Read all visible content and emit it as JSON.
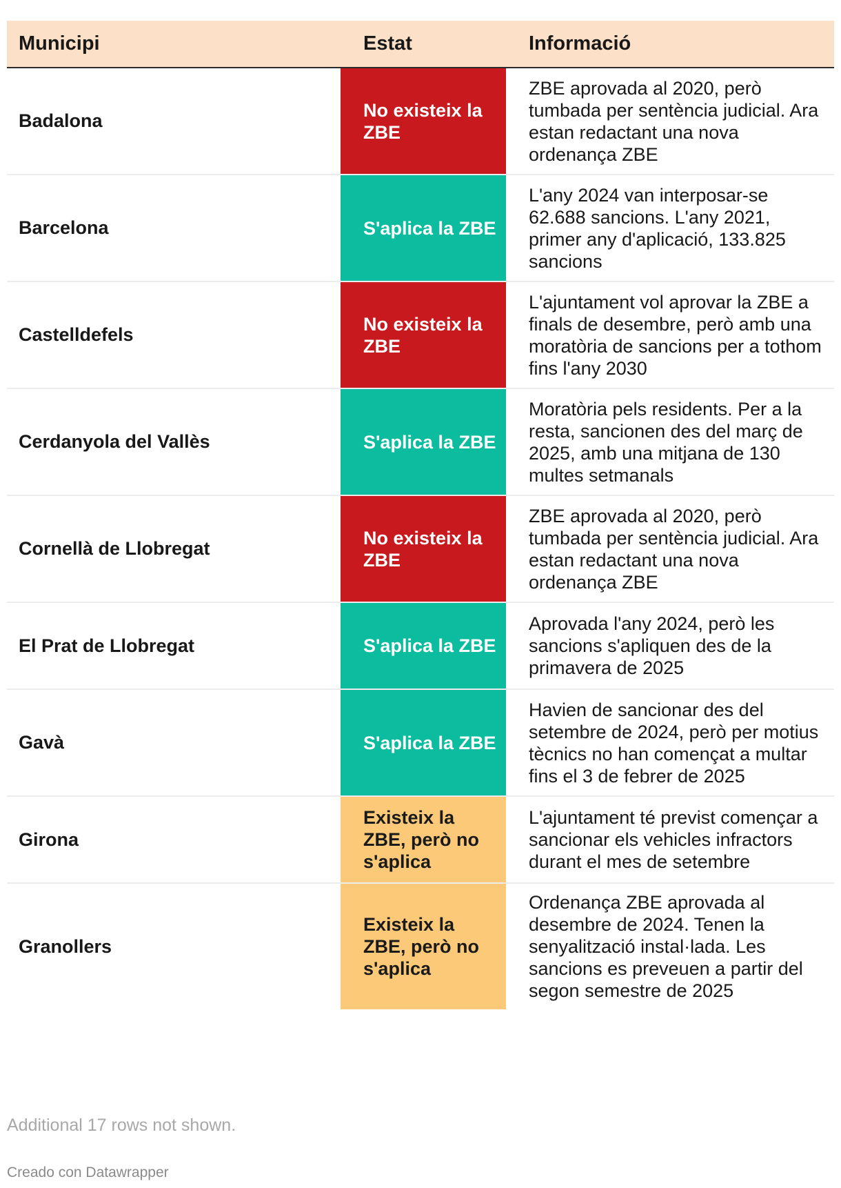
{
  "chart_data": {
    "type": "table",
    "columns": [
      "Municipi",
      "Estat",
      "Informació"
    ],
    "status_colors": {
      "red": "#c8191e",
      "green": "#0bbc9e",
      "yellow": "#fbc977"
    },
    "header_background": "#fde0c8",
    "rows": [
      {
        "municipi": "Badalona",
        "estat": "No existeix la ZBE",
        "status_color": "red",
        "info": "ZBE aprovada al 2020, però tumbada per sentència judicial. Ara estan redactant una nova ordenança ZBE"
      },
      {
        "municipi": "Barcelona",
        "estat": "S'aplica la ZBE",
        "status_color": "green",
        "info": "L'any 2024 van interposar-se 62.688 sancions. L'any 2021, primer any d'aplicació, 133.825 sancions"
      },
      {
        "municipi": "Castelldefels",
        "estat": "No existeix la ZBE",
        "status_color": "red",
        "info": "L'ajuntament vol aprovar la ZBE a finals de desembre, però amb una moratòria de sancions per a tothom fins l'any 2030"
      },
      {
        "municipi": "Cerdanyola del Vallès",
        "estat": "S'aplica la ZBE",
        "status_color": "green",
        "info": "Moratòria pels residents. Per a la resta, sancionen des del març de 2025, amb una mitjana de 130 multes setmanals"
      },
      {
        "municipi": "Cornellà de Llobregat",
        "estat": "No existeix la ZBE",
        "status_color": "red",
        "info": "ZBE aprovada al 2020, però tumbada per sentència judicial. Ara estan redactant una nova ordenança ZBE"
      },
      {
        "municipi": "El Prat de Llobregat",
        "estat": "S'aplica la ZBE",
        "status_color": "green",
        "info": "Aprovada l'any 2024, però les sancions s'apliquen des de la primavera de 2025"
      },
      {
        "municipi": "Gavà",
        "estat": "S'aplica la ZBE",
        "status_color": "green",
        "info": "Havien de sancionar des del setembre de 2024, però per motius tècnics no han començat a multar fins el 3 de febrer de 2025"
      },
      {
        "municipi": "Girona",
        "estat": "Existeix la ZBE, però no s'aplica",
        "status_color": "yellow",
        "info": "L'ajuntament té previst començar a sancionar els vehicles infractors durant el mes de setembre"
      },
      {
        "municipi": "Granollers",
        "estat": "Existeix la ZBE, però no s'aplica",
        "status_color": "yellow",
        "info": "Ordenança ZBE aprovada al desembre de 2024. Tenen la senyalització instal·lada. Les sancions es preveuen a partir del segon semestre de 2025"
      }
    ],
    "footnote": "Additional 17 rows not shown."
  },
  "credit": "Creado con Datawrapper"
}
